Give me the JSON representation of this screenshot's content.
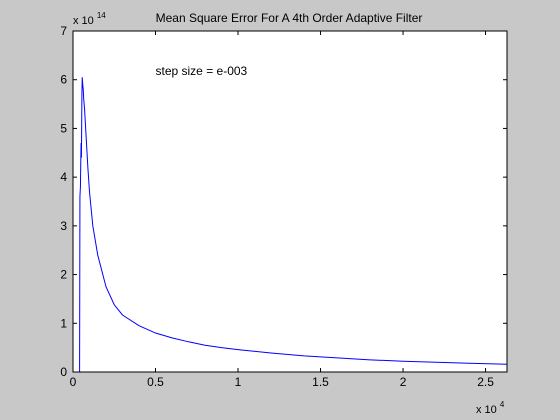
{
  "chart_data": {
    "type": "line",
    "title": "Mean Square Error For A 4th Order Adaptive Filter",
    "xlabel": "",
    "ylabel": "",
    "x_multiplier": "x 10",
    "x_exponent": "4",
    "y_multiplier": "x 10",
    "y_exponent": "14",
    "annotation": "step size = e-003",
    "annotation_pos": {
      "x": 5000,
      "y": 6.1
    },
    "xlim": [
      0,
      26300
    ],
    "ylim": [
      0,
      7
    ],
    "xticks": [
      0,
      5000,
      10000,
      15000,
      20000,
      25000
    ],
    "xtick_labels": [
      "0",
      "0.5",
      "1",
      "1.5",
      "2",
      "2.5"
    ],
    "yticks": [
      0,
      1,
      2,
      3,
      4,
      5,
      6,
      7
    ],
    "ytick_labels": [
      "0",
      "1",
      "2",
      "3",
      "4",
      "5",
      "6",
      "7"
    ],
    "grid": false,
    "line_color": "#0000ff",
    "series": [
      {
        "x": [
          0,
          400,
          420,
          450,
          470,
          490,
          510,
          540,
          560,
          590,
          620,
          650,
          700,
          800,
          900,
          1000,
          1200,
          1500,
          2000,
          2500,
          3000,
          4000,
          5000,
          6000,
          7000,
          8000,
          9000,
          10000,
          12000,
          14000,
          16000,
          18000,
          20000,
          22000,
          24000,
          26300
        ],
        "y": [
          0,
          0,
          3.6,
          3.8,
          4.3,
          4.7,
          4.4,
          5.7,
          6.05,
          5.9,
          5.8,
          5.6,
          5.4,
          4.8,
          4.2,
          3.7,
          3.0,
          2.4,
          1.75,
          1.38,
          1.17,
          0.95,
          0.8,
          0.7,
          0.62,
          0.55,
          0.5,
          0.46,
          0.39,
          0.33,
          0.29,
          0.25,
          0.22,
          0.2,
          0.18,
          0.16
        ]
      }
    ]
  }
}
